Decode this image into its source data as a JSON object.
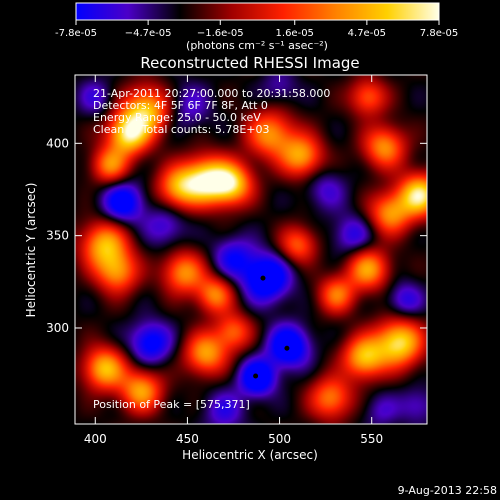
{
  "chart_data": {
    "type": "heatmap",
    "title": "Reconstructed RHESSI Image",
    "xlabel": "Heliocentric X (arcsec)",
    "ylabel": "Heliocentric Y (arcsec)",
    "xlim": [
      389,
      580
    ],
    "ylim": [
      248,
      437
    ],
    "xticks": [
      400,
      450,
      500,
      550
    ],
    "yticks": [
      300,
      350,
      400
    ],
    "colorbar": {
      "range": [
        -7.8e-05,
        7.8e-05
      ],
      "tick_values": [
        -7.8e-05,
        -4.7e-05,
        -1.6e-05,
        1.6e-05,
        4.7e-05,
        7.8e-05
      ],
      "tick_labels": [
        "-7.8e-05",
        "−4.7e-05",
        "−1.6e-05",
        "1.6e-05",
        "4.7e-05",
        "7.8e-05"
      ],
      "units": "(photons cm⁻² s⁻¹ asec⁻²)",
      "colors": [
        "#0000ff",
        "#4b00c8",
        "#000000",
        "#a00000",
        "#ff2000",
        "#ff8000",
        "#ffd000",
        "#ffffe8"
      ]
    },
    "annotations": [
      "21-Apr-2011 20:27:00.000 to 20:31:58.000",
      "Detectors: 4F 5F 6F 7F 8F, Att 0",
      "Energy Range: 25.0 - 50.0 keV",
      "Clean     Total counts: 5.78E+03"
    ],
    "peak_label": "Position of Peak = [575,371]",
    "peak_position": [
      575,
      371
    ],
    "markers": [
      [
        491,
        327
      ],
      [
        504,
        289
      ],
      [
        487,
        274
      ]
    ],
    "blobs": [
      {
        "x": 460,
        "y": 380,
        "v": 7.5e-05,
        "s": 9
      },
      {
        "x": 474,
        "y": 378,
        "v": 6.5e-05,
        "s": 8
      },
      {
        "x": 445,
        "y": 376,
        "v": 4.5e-05,
        "s": 8
      },
      {
        "x": 418,
        "y": 405,
        "v": 7.5e-05,
        "s": 8
      },
      {
        "x": 428,
        "y": 418,
        "v": 6e-05,
        "s": 9
      },
      {
        "x": 408,
        "y": 388,
        "v": 4e-05,
        "s": 7
      },
      {
        "x": 495,
        "y": 405,
        "v": 4.5e-05,
        "s": 9
      },
      {
        "x": 512,
        "y": 393,
        "v": 5e-05,
        "s": 8
      },
      {
        "x": 548,
        "y": 425,
        "v": 3e-05,
        "s": 7
      },
      {
        "x": 576,
        "y": 372,
        "v": 7.8e-05,
        "s": 8
      },
      {
        "x": 560,
        "y": 362,
        "v": 4.5e-05,
        "s": 8
      },
      {
        "x": 557,
        "y": 398,
        "v": 4.5e-05,
        "s": 8
      },
      {
        "x": 405,
        "y": 345,
        "v": 5.5e-05,
        "s": 9
      },
      {
        "x": 412,
        "y": 330,
        "v": 4e-05,
        "s": 8
      },
      {
        "x": 448,
        "y": 330,
        "v": 4.5e-05,
        "s": 8
      },
      {
        "x": 465,
        "y": 318,
        "v": 4e-05,
        "s": 7
      },
      {
        "x": 548,
        "y": 332,
        "v": 5e-05,
        "s": 8
      },
      {
        "x": 531,
        "y": 318,
        "v": 3.5e-05,
        "s": 7
      },
      {
        "x": 565,
        "y": 292,
        "v": 7.5e-05,
        "s": 9
      },
      {
        "x": 546,
        "y": 284,
        "v": 6e-05,
        "s": 8
      },
      {
        "x": 405,
        "y": 278,
        "v": 6e-05,
        "s": 8
      },
      {
        "x": 425,
        "y": 266,
        "v": 5e-05,
        "s": 8
      },
      {
        "x": 460,
        "y": 286,
        "v": 5e-05,
        "s": 8
      },
      {
        "x": 475,
        "y": 298,
        "v": 3e-05,
        "s": 7
      },
      {
        "x": 528,
        "y": 262,
        "v": 4e-05,
        "s": 8
      },
      {
        "x": 510,
        "y": 345,
        "v": 3e-05,
        "s": 7
      },
      {
        "x": 450,
        "y": 420,
        "v": -3e-05,
        "s": 9
      },
      {
        "x": 415,
        "y": 368,
        "v": -6.5e-05,
        "s": 8
      },
      {
        "x": 438,
        "y": 355,
        "v": -3.5e-05,
        "s": 8
      },
      {
        "x": 493,
        "y": 327,
        "v": -7.8e-05,
        "s": 9
      },
      {
        "x": 475,
        "y": 338,
        "v": -4.5e-05,
        "s": 8
      },
      {
        "x": 505,
        "y": 290,
        "v": -7.5e-05,
        "s": 8
      },
      {
        "x": 488,
        "y": 273,
        "v": -7.5e-05,
        "s": 7
      },
      {
        "x": 430,
        "y": 292,
        "v": -6e-05,
        "s": 8
      },
      {
        "x": 540,
        "y": 350,
        "v": -4e-05,
        "s": 8
      },
      {
        "x": 525,
        "y": 375,
        "v": -3e-05,
        "s": 8
      },
      {
        "x": 568,
        "y": 315,
        "v": -4e-05,
        "s": 7
      },
      {
        "x": 470,
        "y": 255,
        "v": -3.5e-05,
        "s": 8
      },
      {
        "x": 575,
        "y": 258,
        "v": -3e-05,
        "s": 7
      },
      {
        "x": 400,
        "y": 425,
        "v": -3e-05,
        "s": 7
      },
      {
        "x": 500,
        "y": 430,
        "v": -2.5e-05,
        "s": 7
      },
      {
        "x": 555,
        "y": 255,
        "v": -2.5e-05,
        "s": 7
      }
    ]
  },
  "footer": {
    "timestamp": "9-Aug-2013 22:58"
  }
}
